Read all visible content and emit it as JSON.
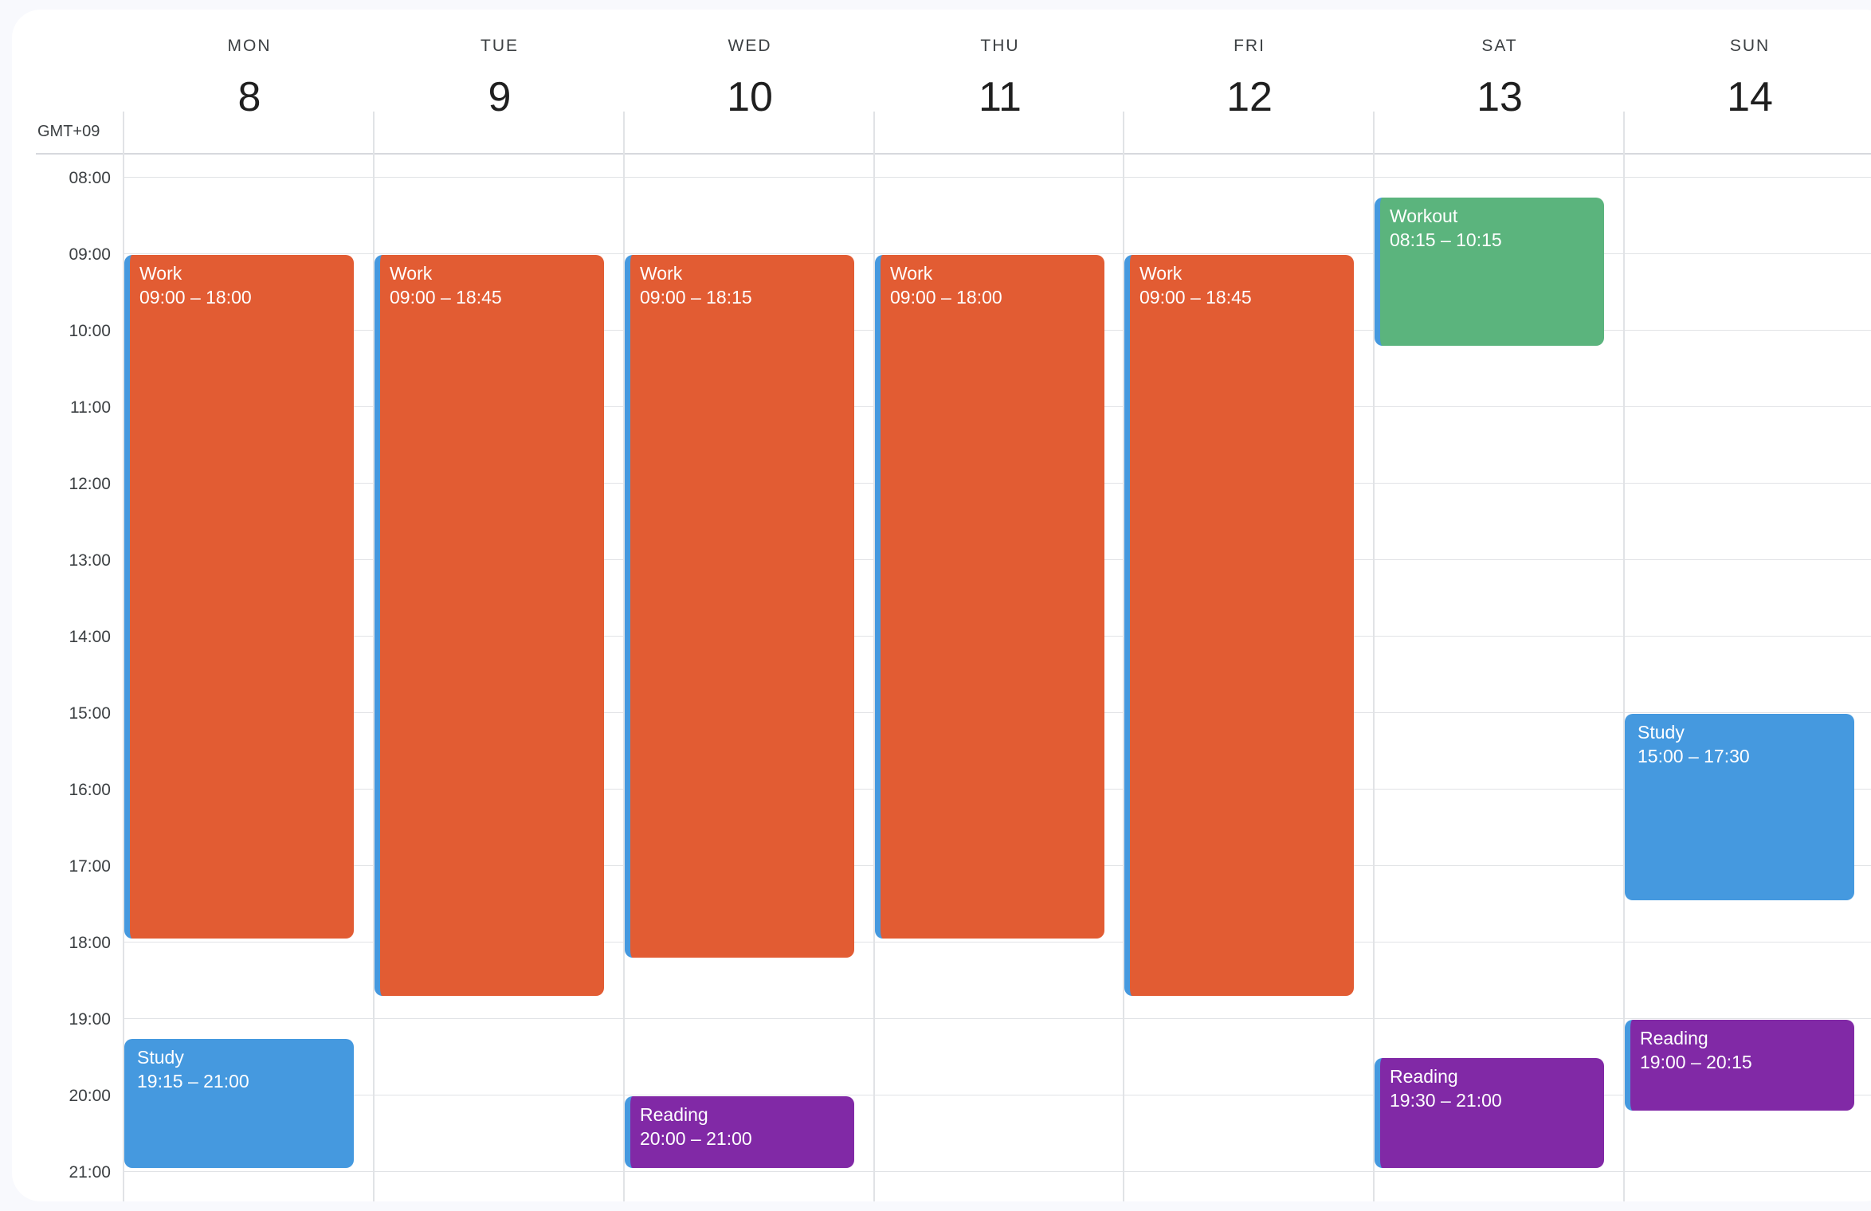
{
  "timezone": "GMT+09",
  "days": [
    {
      "name": "MON",
      "num": "8"
    },
    {
      "name": "TUE",
      "num": "9"
    },
    {
      "name": "WED",
      "num": "10"
    },
    {
      "name": "THU",
      "num": "11"
    },
    {
      "name": "FRI",
      "num": "12"
    },
    {
      "name": "SAT",
      "num": "13"
    },
    {
      "name": "SUN",
      "num": "14"
    }
  ],
  "hours": [
    "08:00",
    "09:00",
    "10:00",
    "11:00",
    "12:00",
    "13:00",
    "14:00",
    "15:00",
    "16:00",
    "17:00",
    "18:00",
    "19:00",
    "20:00",
    "21:00"
  ],
  "colors": {
    "work": "#e25c33",
    "study": "#4599df",
    "reading": "#8129a6",
    "workout": "#5bb47d",
    "accent_bar": "#4599df"
  },
  "events": [
    {
      "day": 0,
      "title": "Work",
      "time": "09:00 – 18:00",
      "start": "09:00",
      "end": "18:00",
      "category": "work",
      "accent": true
    },
    {
      "day": 0,
      "title": "Study",
      "time": "19:15 – 21:00",
      "start": "19:15",
      "end": "21:00",
      "category": "study",
      "accent": false
    },
    {
      "day": 1,
      "title": "Work",
      "time": "09:00 – 18:45",
      "start": "09:00",
      "end": "18:45",
      "category": "work",
      "accent": true
    },
    {
      "day": 2,
      "title": "Work",
      "time": "09:00 – 18:15",
      "start": "09:00",
      "end": "18:15",
      "category": "work",
      "accent": true
    },
    {
      "day": 2,
      "title": "Reading",
      "time": "20:00 – 21:00",
      "start": "20:00",
      "end": "21:00",
      "category": "reading",
      "accent": true
    },
    {
      "day": 3,
      "title": "Work",
      "time": "09:00 – 18:00",
      "start": "09:00",
      "end": "18:00",
      "category": "work",
      "accent": true
    },
    {
      "day": 4,
      "title": "Work",
      "time": "09:00 – 18:45",
      "start": "09:00",
      "end": "18:45",
      "category": "work",
      "accent": true
    },
    {
      "day": 5,
      "title": "Workout",
      "time": "08:15 – 10:15",
      "start": "08:15",
      "end": "10:15",
      "category": "workout",
      "accent": true
    },
    {
      "day": 5,
      "title": "Reading",
      "time": "19:30 – 21:00",
      "start": "19:30",
      "end": "21:00",
      "category": "reading",
      "accent": true
    },
    {
      "day": 6,
      "title": "Study",
      "time": "15:00 – 17:30",
      "start": "15:00",
      "end": "17:30",
      "category": "study",
      "accent": false
    },
    {
      "day": 6,
      "title": "Reading",
      "time": "19:00 – 20:15",
      "start": "19:00",
      "end": "20:15",
      "category": "reading",
      "accent": true
    }
  ]
}
